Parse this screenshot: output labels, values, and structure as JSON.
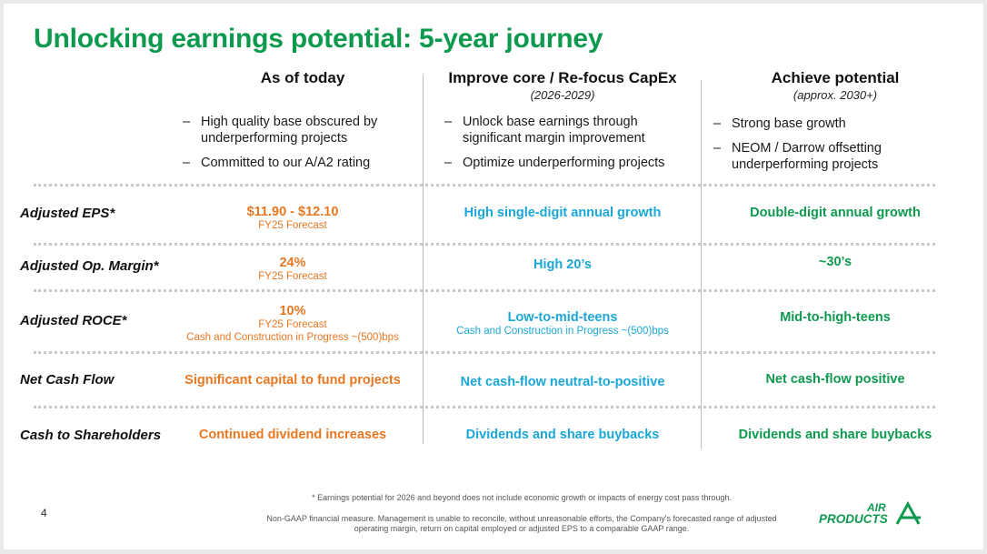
{
  "title": "Unlocking earnings potential: 5-year journey",
  "columns": [
    {
      "heading": "As of today",
      "subheading": "",
      "bullets": [
        "High quality base obscured by underperforming projects",
        "Committed to our A/A2 rating"
      ]
    },
    {
      "heading": "Improve core / Re-focus CapEx",
      "subheading": "(2026-2029)",
      "bullets": [
        "Unlock base earnings through significant margin improvement",
        "Optimize underperforming projects"
      ]
    },
    {
      "heading": "Achieve potential",
      "subheading": "(approx. 2030+)",
      "bullets": [
        "Strong base growth",
        "NEOM / Darrow offsetting underperforming projects"
      ]
    }
  ],
  "rows": [
    {
      "label": "Adjusted EPS*",
      "today": {
        "value": "$11.90 - $12.10",
        "sub1": "FY25 Forecast",
        "sub2": ""
      },
      "improve": {
        "value": "High single-digit annual growth",
        "sub": ""
      },
      "achieve": {
        "value": "Double-digit annual growth"
      }
    },
    {
      "label": "Adjusted Op. Margin*",
      "today": {
        "value": "24%",
        "sub1": "FY25 Forecast",
        "sub2": ""
      },
      "improve": {
        "value": "High 20’s",
        "sub": ""
      },
      "achieve": {
        "value": "~30’s"
      }
    },
    {
      "label": "Adjusted ROCE*",
      "today": {
        "value": "10%",
        "sub1": "FY25 Forecast",
        "sub2": "Cash and Construction in Progress ~(500)bps"
      },
      "improve": {
        "value": "Low-to-mid-teens",
        "sub": "Cash and Construction in Progress ~(500)bps"
      },
      "achieve": {
        "value": "Mid-to-high-teens"
      }
    },
    {
      "label": "Net Cash Flow",
      "today": {
        "value": "Significant capital to fund projects",
        "sub1": "",
        "sub2": ""
      },
      "improve": {
        "value": "Net cash-flow neutral-to-positive",
        "sub": ""
      },
      "achieve": {
        "value": "Net cash-flow positive"
      }
    },
    {
      "label": "Cash to Shareholders",
      "today": {
        "value": "Continued dividend increases",
        "sub1": "",
        "sub2": ""
      },
      "improve": {
        "value": "Dividends and share buybacks",
        "sub": ""
      },
      "achieve": {
        "value": "Dividends and share buybacks"
      }
    }
  ],
  "footer": {
    "page_number": "4",
    "footnote1": "* Earnings potential for 2026 and beyond does not include economic growth or impacts of energy cost pass through.",
    "footnote2": "Non-GAAP financial measure. Management is unable to reconcile, without unreasonable efforts, the Company's forecasted range of adjusted operating margin, return on capital employed or adjusted EPS to a comparable GAAP range.",
    "logo_text_top": "AIR",
    "logo_text_bottom": "PRODUCTS"
  },
  "colors": {
    "orange": "#e87722",
    "blue": "#1aa7d8",
    "green": "#0d9a4e"
  }
}
